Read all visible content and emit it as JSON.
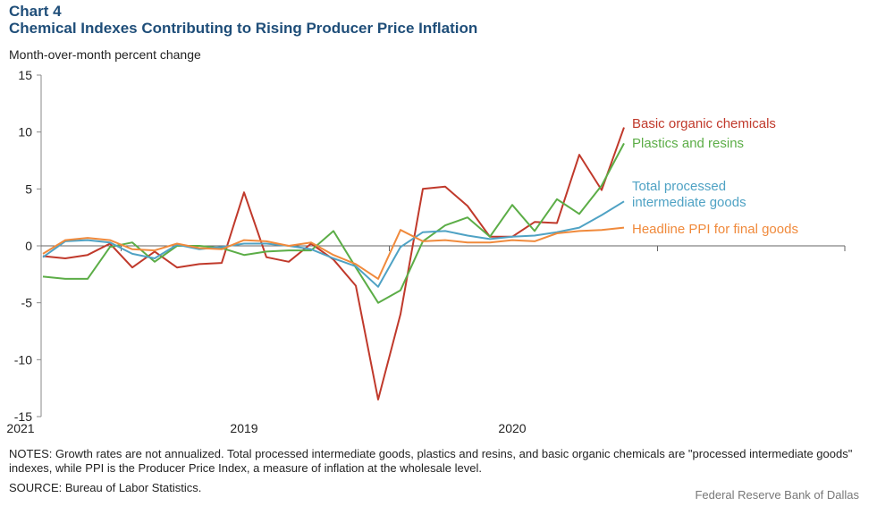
{
  "header": {
    "chart_label": "Chart 4",
    "title": "Chemical Indexes Contributing to Rising Producer Price Inflation",
    "unit_label": "Month-over-month  percent change"
  },
  "footer": {
    "notes": "NOTES: Growth rates are not annualized. Total processed intermediate goods, plastics and resins, and basic organic chemicals are \"processed intermediate goods\" indexes, while PPI is the Producer Price Index, a measure of inflation at the wholesale level.",
    "source": "SOURCE: Bureau of Labor Statistics.",
    "credit": "Federal Reserve Bank of Dallas"
  },
  "chart_data": {
    "type": "line",
    "title": "Chemical Indexes Contributing to Rising Producer Price Inflation",
    "ylabel": "Month-over-month  percent change",
    "xlabel": "",
    "ylim": [
      -15,
      15
    ],
    "yticks": [
      15,
      10,
      5,
      0,
      -5,
      -10,
      -15
    ],
    "x": [
      "2018-09",
      "2018-10",
      "2018-11",
      "2018-12",
      "2019-01",
      "2019-02",
      "2019-03",
      "2019-04",
      "2019-05",
      "2019-06",
      "2019-07",
      "2019-08",
      "2019-09",
      "2019-10",
      "2019-11",
      "2019-12",
      "2020-01",
      "2020-02",
      "2020-03",
      "2020-04",
      "2020-05",
      "2020-06",
      "2020-07",
      "2020-08",
      "2020-09",
      "2020-10",
      "2020-11",
      "2020-12",
      "2021-01",
      "2021-02",
      "2021-03",
      "2021-04"
    ],
    "year_labels": [
      {
        "label": "2019",
        "position": "2019-06"
      },
      {
        "label": "2020",
        "position": "2020-06"
      },
      {
        "label": "2021",
        "position": "2021-06"
      }
    ],
    "grid": false,
    "legend": "labels at line ends",
    "series": [
      {
        "name": "Basic organic chemicals",
        "color": "#c0392b",
        "values": [
          -0.9,
          -1.1,
          -0.8,
          0.2,
          -1.9,
          -0.5,
          -1.9,
          -1.6,
          -1.5,
          4.7,
          -1.0,
          -1.4,
          0.2,
          -1.2,
          -3.5,
          -13.5,
          -6.0,
          5.0,
          5.2,
          3.5,
          0.8,
          0.8,
          2.1,
          2.0,
          8.0,
          4.9,
          10.4,
          null,
          null,
          null,
          null,
          null
        ]
      },
      {
        "name": "Plastics and resins",
        "color": "#5cad47",
        "values": [
          -2.7,
          -2.9,
          -2.9,
          -0.1,
          0.3,
          -1.4,
          0.0,
          0.0,
          -0.2,
          -0.8,
          -0.5,
          -0.4,
          -0.4,
          1.3,
          -1.9,
          -5.0,
          -3.9,
          0.4,
          1.8,
          2.5,
          0.8,
          3.6,
          1.3,
          4.1,
          2.8,
          5.3,
          9.0,
          null,
          null,
          null,
          null,
          null
        ]
      },
      {
        "name": "Total processed intermediate goods",
        "color": "#4fa2c4",
        "values": [
          -1.0,
          0.4,
          0.5,
          0.3,
          -0.7,
          -1.1,
          0.1,
          -0.3,
          -0.1,
          0.2,
          0.2,
          0.0,
          -0.3,
          -1.1,
          -1.8,
          -3.6,
          -0.1,
          1.2,
          1.3,
          0.9,
          0.6,
          0.8,
          0.9,
          1.2,
          1.6,
          2.7,
          3.9,
          null,
          null,
          null,
          null,
          null
        ]
      },
      {
        "name": "Headline PPI for final goods",
        "color": "#f08a3c",
        "values": [
          -0.7,
          0.5,
          0.7,
          0.5,
          -0.3,
          -0.4,
          0.2,
          -0.2,
          -0.3,
          0.5,
          0.4,
          0.0,
          0.3,
          -0.8,
          -1.6,
          -2.9,
          1.4,
          0.4,
          0.5,
          0.3,
          0.3,
          0.5,
          0.4,
          1.1,
          1.3,
          1.4,
          1.6,
          null,
          null,
          null,
          null,
          null
        ]
      }
    ]
  }
}
